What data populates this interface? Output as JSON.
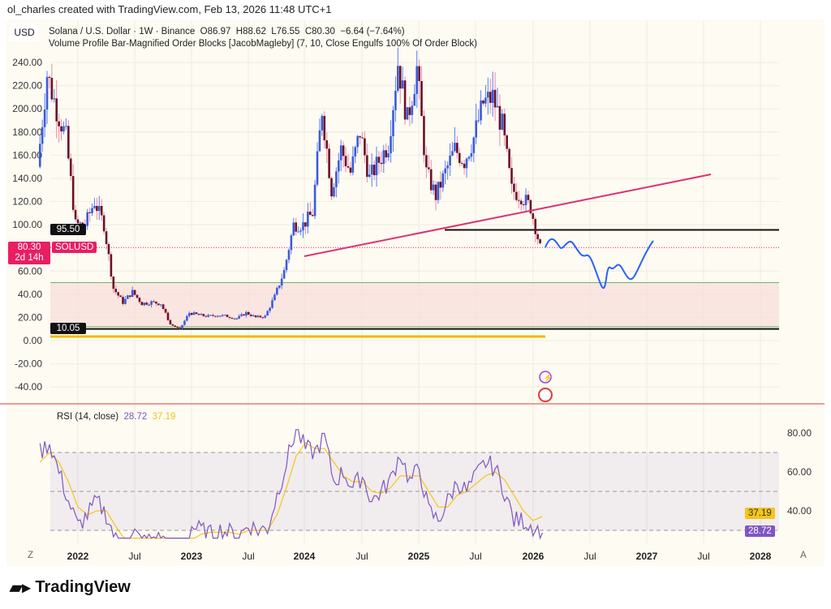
{
  "credit": "ol_charles created with TradingView.com, Feb 13, 2026 11:48 UTC+1",
  "currency": "USD",
  "legend": {
    "symbol": "Solana / U.S. Dollar · 1W · Binance",
    "open": "O86.97",
    "high": "H88.62",
    "low": "L76.55",
    "close": "C80.30",
    "change": "−6.64 (−7.64%)",
    "indicator": "Volume Profile Bar-Magnified Order Blocks [JacobMagleby] (7, 10, Close Engulfs 100% Of Order Block)"
  },
  "price_tags": {
    "level": "95.50",
    "last": "80.30",
    "countdown": "2d 14h",
    "symbol": "SOLUSD",
    "support": "10.05"
  },
  "rsi": {
    "label": "RSI (14, close)",
    "value": "28.72",
    "ma": "37.19"
  },
  "brand": "TradingView",
  "scale_buttons": {
    "left": "Z",
    "right": "A"
  },
  "colors": {
    "up": "#3b5bdb",
    "down": "#6b1028",
    "trendline": "#e0306e",
    "projection": "#2962ff",
    "rsi": "#7e57c2",
    "rsi_ma": "#f5c518",
    "zone": "#f9d9d6"
  },
  "chart_data": [
    {
      "type": "candlestick",
      "title": "Solana / U.S. Dollar · 1W · Binance",
      "ylim": [
        -50,
        260
      ],
      "yticks": [
        "240.00",
        "220.00",
        "200.00",
        "180.00",
        "160.00",
        "140.00",
        "120.00",
        "100.00",
        "60.00",
        "40.00",
        "20.00",
        "0.00",
        "-20.00",
        "-40.00"
      ],
      "xticks": [
        "2022",
        "Jul",
        "2023",
        "Jul",
        "2024",
        "Jul",
        "2025",
        "Jul",
        "2026",
        "Jul",
        "2027",
        "Jul",
        "2028"
      ],
      "monthly_close": {
        "dates": [
          "2021-09",
          "2021-10",
          "2021-11",
          "2021-12",
          "2022-01",
          "2022-02",
          "2022-03",
          "2022-04",
          "2022-05",
          "2022-06",
          "2022-07",
          "2022-08",
          "2022-09",
          "2022-10",
          "2022-11",
          "2022-12",
          "2023-01",
          "2023-02",
          "2023-03",
          "2023-04",
          "2023-05",
          "2023-06",
          "2023-07",
          "2023-08",
          "2023-09",
          "2023-10",
          "2023-11",
          "2023-12",
          "2024-01",
          "2024-02",
          "2024-03",
          "2024-04",
          "2024-05",
          "2024-06",
          "2024-07",
          "2024-08",
          "2024-09",
          "2024-10",
          "2024-11",
          "2024-12",
          "2025-01",
          "2025-02",
          "2025-03",
          "2025-04",
          "2025-05",
          "2025-06",
          "2025-07",
          "2025-08",
          "2025-09",
          "2025-10",
          "2025-11",
          "2025-12",
          "2026-01",
          "2026-02"
        ],
        "values": [
          150,
          230,
          200,
          175,
          100,
          100,
          120,
          100,
          45,
          33,
          42,
          32,
          33,
          32,
          14,
          10,
          24,
          22,
          21,
          22,
          21,
          19,
          24,
          20,
          21,
          38,
          60,
          100,
          100,
          110,
          200,
          130,
          165,
          145,
          180,
          140,
          155,
          170,
          240,
          190,
          235,
          145,
          125,
          145,
          165,
          155,
          175,
          205,
          210,
          185,
          130,
          125,
          115,
          80.3
        ]
      },
      "levels": {
        "resistance": 95.5,
        "support": 10.05,
        "zone": [
          12,
          50
        ]
      }
    },
    {
      "type": "line",
      "title": "RSI (14, close)",
      "yticks": [
        "80.00",
        "60.00",
        "40.00"
      ],
      "bands": [
        30,
        50,
        70
      ],
      "series": [
        {
          "name": "RSI",
          "values": [
            70,
            75,
            60,
            45,
            32,
            38,
            45,
            38,
            25,
            20,
            28,
            24,
            26,
            25,
            18,
            16,
            32,
            30,
            28,
            30,
            29,
            27,
            33,
            30,
            31,
            48,
            65,
            82,
            72,
            70,
            78,
            55,
            60,
            52,
            58,
            45,
            50,
            56,
            70,
            55,
            62,
            40,
            35,
            45,
            55,
            50,
            58,
            65,
            62,
            50,
            35,
            35,
            32,
            28.72
          ]
        },
        {
          "name": "RSI MA",
          "values": [
            65,
            70,
            65,
            55,
            42,
            38,
            40,
            40,
            32,
            25,
            26,
            25,
            25,
            25,
            22,
            19,
            25,
            28,
            29,
            29,
            29,
            28,
            30,
            30,
            30,
            38,
            52,
            68,
            75,
            72,
            72,
            65,
            58,
            55,
            55,
            50,
            49,
            52,
            58,
            58,
            58,
            50,
            42,
            42,
            48,
            50,
            54,
            58,
            60,
            56,
            48,
            40,
            35,
            37.19
          ]
        }
      ]
    }
  ]
}
